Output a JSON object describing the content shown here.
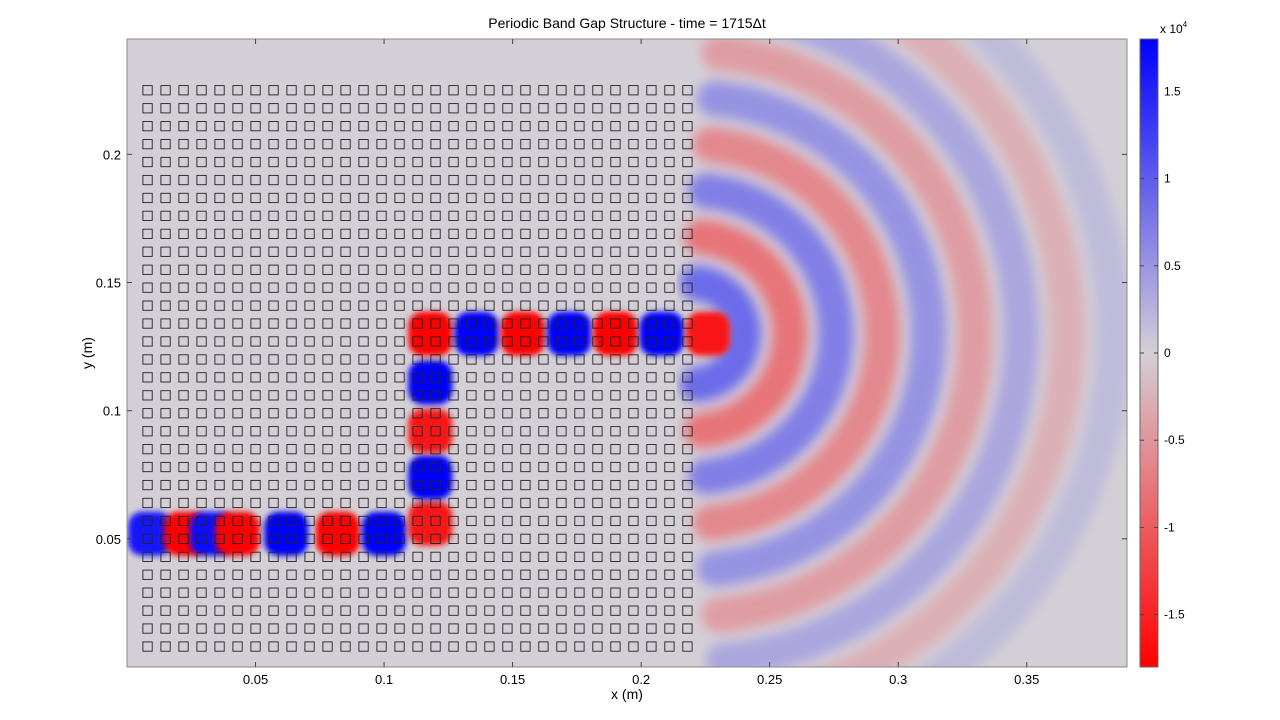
{
  "chart_data": {
    "type": "heatmap",
    "title": "Periodic Band Gap Structure - time = 1715Δt",
    "xlabel": "x (m)",
    "ylabel": "y (m)",
    "xlim": [
      0.0,
      0.389
    ],
    "ylim": [
      0.0,
      0.245
    ],
    "x_ticks": [
      "0.05",
      "0.1",
      "0.15",
      "0.2",
      "0.25",
      "0.3",
      "0.35"
    ],
    "x_tick_values": [
      0.05,
      0.1,
      0.15,
      0.2,
      0.25,
      0.3,
      0.35
    ],
    "y_ticks": [
      "0.05",
      "0.1",
      "0.15",
      "0.2"
    ],
    "y_tick_values": [
      0.05,
      0.1,
      0.15,
      0.2
    ],
    "colorbar": {
      "exponent_label": "x 10",
      "exponent": "4",
      "range": [
        -1.8,
        1.8
      ],
      "ticks": [
        "1.5",
        "1",
        "0.5",
        "0",
        "-0.5",
        "-1",
        "-1.5"
      ],
      "tick_values": [
        1.5,
        1,
        0.5,
        0,
        -0.5,
        -1,
        -1.5
      ],
      "color_min": "#ff0000",
      "color_mid": "#d4cfd6",
      "color_max": "#0000ff"
    },
    "lattice": {
      "x_range": [
        0.008,
        0.219
      ],
      "y_range": [
        0.008,
        0.23
      ],
      "pitch": 0.007,
      "cell_size": 0.0036
    },
    "field_lobes": [
      {
        "x": 0.009,
        "y": 0.052,
        "v": 1.6
      },
      {
        "x": 0.023,
        "y": 0.052,
        "v": -1.8
      },
      {
        "x": 0.033,
        "y": 0.052,
        "v": 1.7
      },
      {
        "x": 0.043,
        "y": 0.052,
        "v": -1.8
      },
      {
        "x": 0.062,
        "y": 0.052,
        "v": 1.8
      },
      {
        "x": 0.082,
        "y": 0.052,
        "v": -1.8
      },
      {
        "x": 0.1,
        "y": 0.052,
        "v": 1.8
      },
      {
        "x": 0.118,
        "y": 0.056,
        "v": -1.6
      },
      {
        "x": 0.118,
        "y": 0.074,
        "v": 1.8
      },
      {
        "x": 0.118,
        "y": 0.092,
        "v": -1.6
      },
      {
        "x": 0.118,
        "y": 0.111,
        "v": 1.8
      },
      {
        "x": 0.118,
        "y": 0.13,
        "v": -1.8
      },
      {
        "x": 0.136,
        "y": 0.13,
        "v": 1.8
      },
      {
        "x": 0.154,
        "y": 0.13,
        "v": -1.8
      },
      {
        "x": 0.172,
        "y": 0.13,
        "v": 1.8
      },
      {
        "x": 0.19,
        "y": 0.13,
        "v": -1.8
      },
      {
        "x": 0.208,
        "y": 0.13,
        "v": 1.8
      },
      {
        "x": 0.226,
        "y": 0.13,
        "v": -1.6
      }
    ],
    "radiation": {
      "source": {
        "x": 0.22,
        "y": 0.13
      },
      "wavelength": 0.036,
      "amplitude": 0.6,
      "max_radius": 0.17
    },
    "grid": false,
    "legend": "colorbar-right"
  }
}
